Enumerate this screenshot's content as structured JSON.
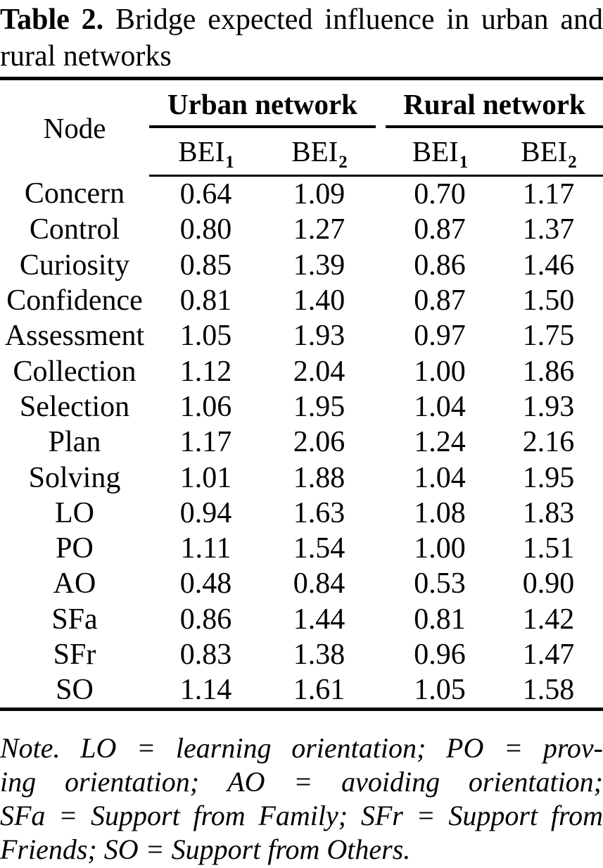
{
  "caption": {
    "label": "Table 2.",
    "line1_rest": "Bridge expected influence in urban and",
    "line2": "rural networks"
  },
  "table": {
    "node_header": "Node",
    "groups": [
      {
        "label": "Urban network"
      },
      {
        "label": "Rural network"
      }
    ],
    "subcolumns": [
      {
        "base": "BEI",
        "sub": "1"
      },
      {
        "base": "BEI",
        "sub": "2"
      },
      {
        "base": "BEI",
        "sub": "1"
      },
      {
        "base": "BEI",
        "sub": "2"
      }
    ],
    "rows": [
      {
        "node": "Concern",
        "values": [
          "0.64",
          "1.09",
          "0.70",
          "1.17"
        ]
      },
      {
        "node": "Control",
        "values": [
          "0.80",
          "1.27",
          "0.87",
          "1.37"
        ]
      },
      {
        "node": "Curiosity",
        "values": [
          "0.85",
          "1.39",
          "0.86",
          "1.46"
        ]
      },
      {
        "node": "Confidence",
        "values": [
          "0.81",
          "1.40",
          "0.87",
          "1.50"
        ]
      },
      {
        "node": "Assessment",
        "values": [
          "1.05",
          "1.93",
          "0.97",
          "1.75"
        ]
      },
      {
        "node": "Collection",
        "values": [
          "1.12",
          "2.04",
          "1.00",
          "1.86"
        ]
      },
      {
        "node": "Selection",
        "values": [
          "1.06",
          "1.95",
          "1.04",
          "1.93"
        ]
      },
      {
        "node": "Plan",
        "values": [
          "1.17",
          "2.06",
          "1.24",
          "2.16"
        ]
      },
      {
        "node": "Solving",
        "values": [
          "1.01",
          "1.88",
          "1.04",
          "1.95"
        ]
      },
      {
        "node": "LO",
        "values": [
          "0.94",
          "1.63",
          "1.08",
          "1.83"
        ]
      },
      {
        "node": "PO",
        "values": [
          "1.11",
          "1.54",
          "1.00",
          "1.51"
        ]
      },
      {
        "node": "AO",
        "values": [
          "0.48",
          "0.84",
          "0.53",
          "0.90"
        ]
      },
      {
        "node": "SFa",
        "values": [
          "0.86",
          "1.44",
          "0.81",
          "1.42"
        ]
      },
      {
        "node": "SFr",
        "values": [
          "0.83",
          "1.38",
          "0.96",
          "1.47"
        ]
      },
      {
        "node": "SO",
        "values": [
          "1.14",
          "1.61",
          "1.05",
          "1.58"
        ]
      }
    ]
  },
  "note": {
    "lines": [
      "Note. LO = learning orientation; PO = prov-",
      "ing orientation; AO = avoiding orientation;",
      "SFa = Support from Family; SFr = Support from",
      "Friends; SO = Support from Others."
    ]
  },
  "colors": {
    "text": "#000000",
    "background": "#ffffff"
  }
}
